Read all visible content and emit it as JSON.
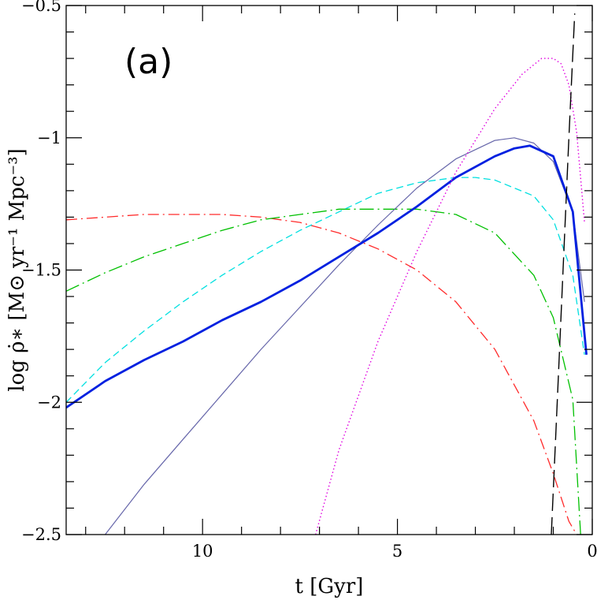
{
  "chart_data": {
    "type": "line",
    "panel_label": "(a)",
    "xlabel": "t  [Gyr]",
    "ylabel": "log ρ̇∗ [M⊙ yr⁻¹ Mpc⁻³]",
    "xlim": [
      13.5,
      0
    ],
    "ylim": [
      -2.5,
      -0.5
    ],
    "x_ticks": [
      10,
      5,
      0
    ],
    "y_ticks": [
      -0.5,
      -1,
      -1.5,
      -2,
      -2.5
    ],
    "x_tick_labels": [
      "10",
      "5",
      "0"
    ],
    "y_tick_labels": [
      "−0.5",
      "−1",
      "−1.5",
      "−2",
      "−2.5"
    ],
    "grid": false,
    "legend": "none",
    "series": [
      {
        "style": "dash-dot",
        "color": "#ff2a2a",
        "width": 1.3,
        "x": [
          13.5,
          12.5,
          11.5,
          10.5,
          9.5,
          8.5,
          7.5,
          6.5,
          5.5,
          4.5,
          3.5,
          2.5,
          1.5,
          1.0,
          0.6,
          0.4
        ],
        "y": [
          -1.31,
          -1.3,
          -1.29,
          -1.29,
          -1.29,
          -1.3,
          -1.32,
          -1.36,
          -1.42,
          -1.5,
          -1.62,
          -1.8,
          -2.07,
          -2.27,
          -2.45,
          -2.5
        ]
      },
      {
        "style": "dash-dot-long",
        "color": "#00c000",
        "width": 1.3,
        "x": [
          13.5,
          12.5,
          11.5,
          10.5,
          9.5,
          8.5,
          7.5,
          6.5,
          5.5,
          4.5,
          3.5,
          2.5,
          1.5,
          1.0,
          0.5,
          0.3
        ],
        "y": [
          -1.58,
          -1.51,
          -1.45,
          -1.4,
          -1.35,
          -1.31,
          -1.29,
          -1.27,
          -1.27,
          -1.27,
          -1.29,
          -1.36,
          -1.52,
          -1.68,
          -1.99,
          -2.5
        ]
      },
      {
        "style": "dashed",
        "color": "#00e0e0",
        "width": 1.3,
        "x": [
          13.5,
          12.5,
          11.5,
          10.5,
          9.5,
          8.5,
          7.5,
          6.5,
          5.5,
          4.5,
          3.5,
          3.0,
          2.5,
          1.5,
          1.0,
          0.5,
          0.2
        ],
        "y": [
          -2.0,
          -1.85,
          -1.73,
          -1.62,
          -1.52,
          -1.43,
          -1.35,
          -1.28,
          -1.21,
          -1.17,
          -1.15,
          -1.15,
          -1.16,
          -1.22,
          -1.31,
          -1.52,
          -1.82
        ]
      },
      {
        "style": "solid-thin",
        "color": "#6666aa",
        "width": 1.2,
        "x": [
          12.5,
          11.5,
          10.5,
          9.5,
          8.5,
          7.5,
          6.5,
          5.5,
          4.5,
          3.5,
          2.5,
          2.0,
          1.5,
          1.0,
          0.5,
          0.2
        ],
        "y": [
          -2.5,
          -2.31,
          -2.14,
          -1.97,
          -1.8,
          -1.64,
          -1.48,
          -1.33,
          -1.19,
          -1.08,
          -1.01,
          -1.0,
          -1.02,
          -1.09,
          -1.28,
          -1.62
        ]
      },
      {
        "style": "solid-thick",
        "color": "#0020e0",
        "width": 2.8,
        "x": [
          13.5,
          12.5,
          11.5,
          10.5,
          9.5,
          8.5,
          7.5,
          6.5,
          5.5,
          4.5,
          3.5,
          2.5,
          2.0,
          1.6,
          1.0,
          0.5,
          0.15
        ],
        "y": [
          -2.02,
          -1.92,
          -1.84,
          -1.77,
          -1.69,
          -1.62,
          -1.54,
          -1.45,
          -1.36,
          -1.26,
          -1.15,
          -1.07,
          -1.04,
          -1.03,
          -1.07,
          -1.28,
          -1.82
        ]
      },
      {
        "style": "dotted",
        "color": "#e000e0",
        "width": 1.4,
        "x": [
          7.1,
          6.5,
          5.5,
          4.5,
          3.5,
          2.5,
          1.8,
          1.3,
          1.0,
          0.8,
          0.6,
          0.4,
          0.2
        ],
        "y": [
          -2.5,
          -2.18,
          -1.77,
          -1.43,
          -1.13,
          -0.89,
          -0.76,
          -0.7,
          -0.7,
          -0.72,
          -0.8,
          -0.98,
          -1.32
        ]
      },
      {
        "style": "long-dash",
        "color": "#000000",
        "width": 1.4,
        "x": [
          1.05,
          0.9,
          0.75,
          0.6,
          0.45
        ],
        "y": [
          -2.5,
          -2.0,
          -1.5,
          -1.0,
          -0.53
        ]
      }
    ]
  }
}
